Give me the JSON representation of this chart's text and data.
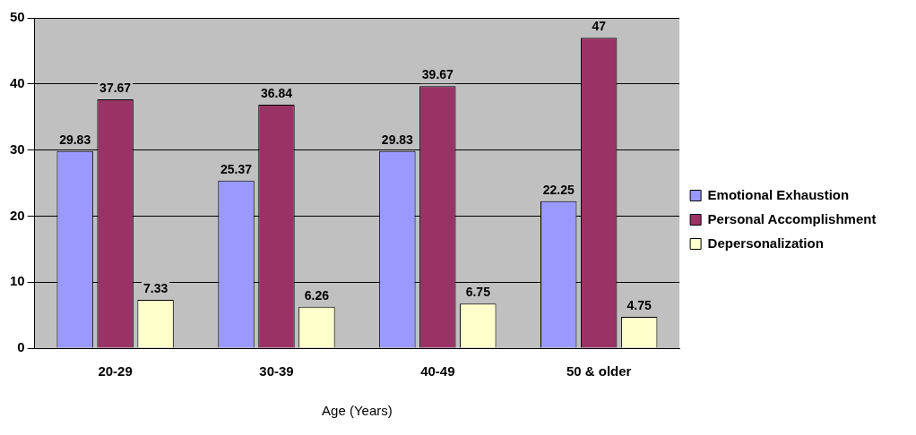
{
  "chart_data": {
    "type": "bar",
    "xlabel": "Age (Years)",
    "categories": [
      "20-29",
      "30-39",
      "40-49",
      "50 & older"
    ],
    "series": [
      {
        "name": "Emotional Exhaustion",
        "color": "#9999ff",
        "values": [
          29.83,
          25.37,
          29.83,
          22.25
        ]
      },
      {
        "name": "Personal Accomplishment",
        "color": "#993366",
        "values": [
          37.67,
          36.84,
          39.67,
          47
        ]
      },
      {
        "name": "Depersonalization",
        "color": "#ffffcc",
        "values": [
          7.33,
          6.26,
          6.75,
          4.75
        ]
      }
    ],
    "ylim": [
      0,
      50
    ],
    "yticks": [
      0,
      10,
      20,
      30,
      40,
      50
    ],
    "grid": "y",
    "legend": "right",
    "data_labels": true
  }
}
